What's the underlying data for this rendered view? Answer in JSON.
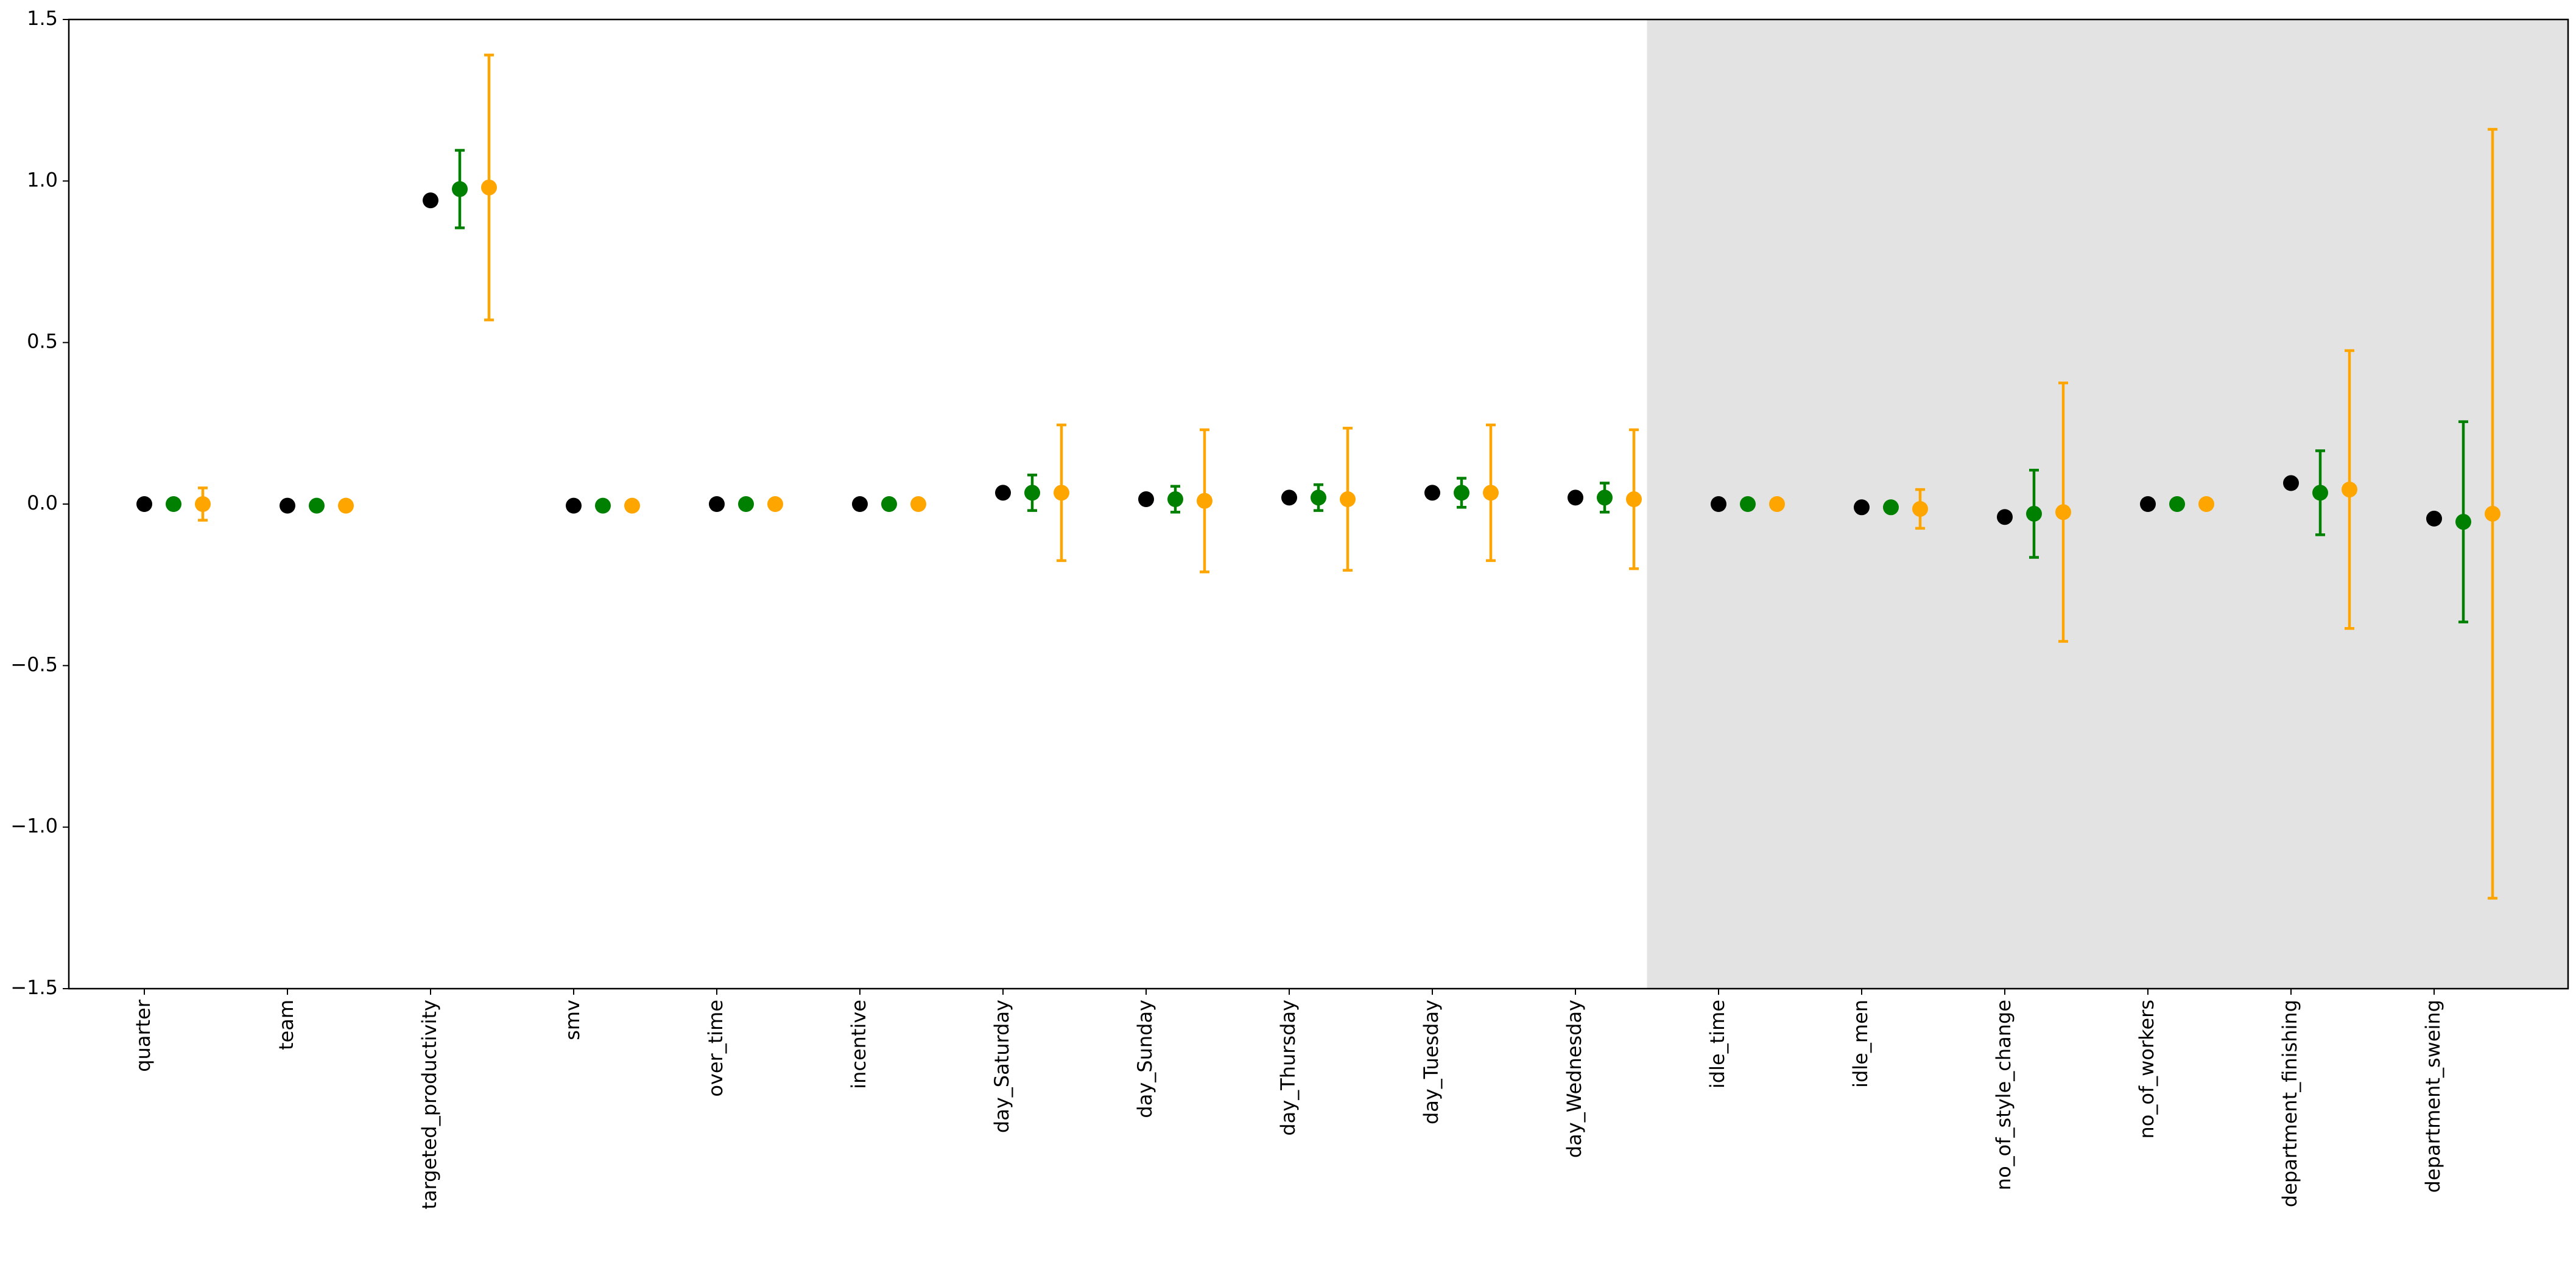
{
  "chart_data": {
    "type": "errorbar",
    "categories": [
      "quarter",
      "team",
      "targeted_productivity",
      "smv",
      "over_time",
      "incentive",
      "day_Saturday",
      "day_Sunday",
      "day_Thursday",
      "day_Tuesday",
      "day_Wednesday",
      "idle_time",
      "idle_men",
      "no_of_style_change",
      "no_of_workers",
      "department_finishing",
      "department_sweing"
    ],
    "series": [
      {
        "color": "#000000",
        "values": [
          0,
          -0.005,
          0.94,
          -0.005,
          0,
          0,
          0.035,
          0.015,
          0.02,
          0.035,
          0.02,
          0,
          -0.01,
          -0.04,
          0,
          0.065,
          -0.045
        ]
      },
      {
        "color": "#008000",
        "values": [
          0,
          -0.005,
          0.975,
          -0.005,
          0,
          0,
          0.035,
          0.015,
          0.02,
          0.035,
          0.02,
          0,
          -0.01,
          -0.03,
          0,
          0.035,
          -0.055
        ],
        "errors": [
          0,
          0,
          0.12,
          0,
          0,
          0,
          0.055,
          0.04,
          0.04,
          0.045,
          0.045,
          0,
          0,
          0.135,
          0,
          0.13,
          0.31
        ]
      },
      {
        "color": "#ffa500",
        "values": [
          0,
          -0.005,
          0.98,
          -0.005,
          0,
          0,
          0.035,
          0.01,
          0.015,
          0.035,
          0.015,
          0,
          -0.015,
          -0.025,
          0,
          0.045,
          -0.03
        ],
        "errors": [
          0.05,
          0,
          0.41,
          0,
          0,
          0,
          0.21,
          0.22,
          0.22,
          0.21,
          0.215,
          0,
          0.06,
          0.4,
          0,
          0.43,
          1.19
        ]
      }
    ],
    "ylim": [
      -1.5,
      1.5
    ],
    "yticks": [
      {
        "value": -1.5,
        "label": "−1.5"
      },
      {
        "value": -1,
        "label": "−1.0"
      },
      {
        "value": -0.5,
        "label": "−0.5"
      },
      {
        "value": 0,
        "label": "0.0"
      },
      0.5,
      {
        "value": 1,
        "label": "1.0"
      },
      1.5
    ],
    "shaded_from_category": 11,
    "shade_color": "#e3e3e3",
    "grid": false
  }
}
